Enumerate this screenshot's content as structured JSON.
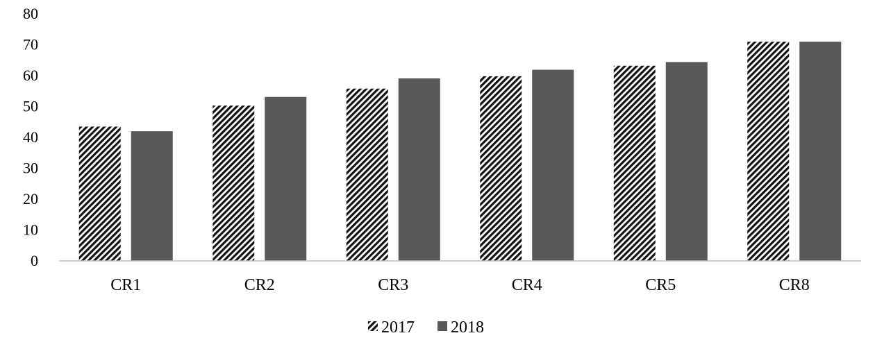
{
  "chart_data": {
    "type": "bar",
    "categories": [
      "CR1",
      "CR2",
      "CR3",
      "CR4",
      "CR5",
      "CR8"
    ],
    "series": [
      {
        "name": "2017",
        "values": [
          43.5,
          50.3,
          55.8,
          59.8,
          63.2,
          71.0
        ],
        "pattern": "diagonal-hatch"
      },
      {
        "name": "2018",
        "values": [
          42.0,
          53.1,
          59.1,
          61.9,
          64.4,
          71.0
        ],
        "color": "#595959"
      }
    ],
    "ylim": [
      0,
      80
    ],
    "yticks": [
      0,
      10,
      20,
      30,
      40,
      50,
      60,
      70,
      80
    ],
    "grid": false,
    "legend_position": "bottom-center",
    "title": "",
    "xlabel": "",
    "ylabel": ""
  }
}
